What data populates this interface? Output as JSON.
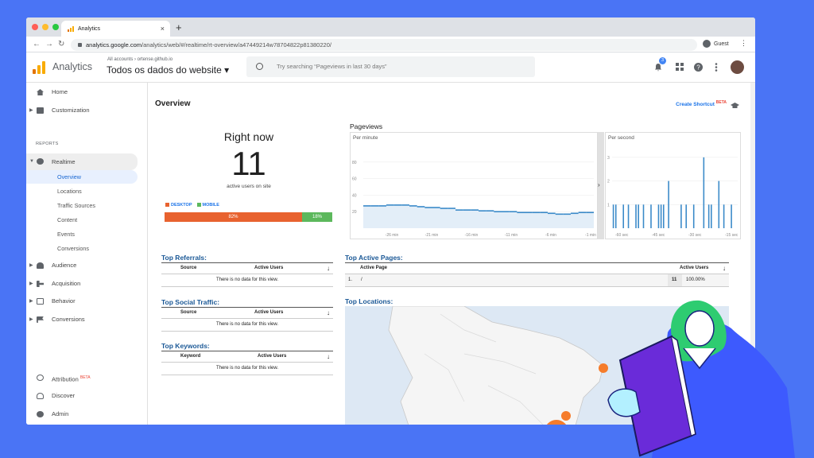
{
  "browser": {
    "tab_title": "Analytics",
    "close_glyph": "×",
    "new_tab_glyph": "+",
    "url_host": "analytics.google.com",
    "url_path": "/analytics/web/#/realtime/rt-overview/a47449214w78704822p81380220/",
    "profile_label": "Guest",
    "menu_glyph": "⋮",
    "back_glyph": "←",
    "forward_glyph": "→",
    "reload_glyph": "↻"
  },
  "header": {
    "brand": "Analytics",
    "breadcrumb": "All accounts › ortense.github.io",
    "property": "Todos os dados do website ▾",
    "search_placeholder": "Try searching “Pageviews in last 30 days”",
    "notification_count": "3",
    "icons": [
      "bell-icon",
      "apps-grid-icon",
      "help-icon",
      "more-vert-icon"
    ]
  },
  "sidebar": {
    "home": "Home",
    "customization": "Customization",
    "reports_label": "REPORTS",
    "realtime": "Realtime",
    "realtime_sub": [
      "Overview",
      "Locations",
      "Traffic Sources",
      "Content",
      "Events",
      "Conversions"
    ],
    "audience": "Audience",
    "acquisition": "Acquisition",
    "behavior": "Behavior",
    "conversions": "Conversions",
    "attribution": "Attribution",
    "beta": "BETA",
    "discover": "Discover",
    "admin": "Admin",
    "collapse_glyph": "‹"
  },
  "main": {
    "title": "Overview",
    "create_shortcut": "Create Shortcut",
    "beta": "BETA",
    "right_now": {
      "label": "Right now",
      "value": "11",
      "sublabel": "active users on site",
      "desktop_label": "DESKTOP",
      "mobile_label": "MOBILE",
      "desktop_pct": "82%",
      "mobile_pct": "18%",
      "desktop_color": "#e8622f",
      "mobile_color": "#5cb85c"
    },
    "pageviews": {
      "title": "Pageviews",
      "per_minute_label": "Per minute",
      "per_second_label": "Per second",
      "expand_glyph": "›"
    },
    "top_referrals": {
      "title": "Top Referrals:",
      "col1": "Source",
      "col2": "Active Users",
      "sort_glyph": "↓",
      "empty": "There is no data for this view."
    },
    "top_social": {
      "title": "Top Social Traffic:",
      "col1": "Source",
      "col2": "Active Users",
      "sort_glyph": "↓",
      "empty": "There is no data for this view."
    },
    "top_keywords": {
      "title": "Top Keywords:",
      "col1": "Keyword",
      "col2": "Active Users",
      "sort_glyph": "↓",
      "empty": "There is no data for this view."
    },
    "top_pages": {
      "title": "Top Active Pages:",
      "col1": "Active Page",
      "col2": "Active Users",
      "sort_glyph": "↓",
      "row_index": "1.",
      "row_page": "/",
      "row_users": "11",
      "row_pct": "100.00%"
    },
    "top_locations": {
      "title": "Top Locations:"
    }
  },
  "chart_data": [
    {
      "type": "area",
      "title": "Per minute",
      "x_ticks": [
        "-26 min",
        "-21 min",
        "-16 min",
        "-11 min",
        "-6 min",
        "-1 min"
      ],
      "y_ticks": [
        "80",
        "60",
        "40",
        "20"
      ],
      "ylim": [
        0,
        100
      ],
      "values": [
        27,
        27,
        27,
        28,
        28,
        28,
        27,
        26,
        25,
        25,
        24,
        24,
        22,
        22,
        22,
        21,
        21,
        20,
        20,
        20,
        19,
        19,
        19,
        19,
        18,
        17,
        17,
        18,
        19,
        19
      ]
    },
    {
      "type": "bar",
      "title": "Per second",
      "x_ticks": [
        "-60 sec",
        "-45 sec",
        "-30 sec",
        "-15 sec"
      ],
      "y_ticks": [
        "3",
        "2",
        "1"
      ],
      "ylim": [
        0,
        3.5
      ],
      "values": [
        1,
        1,
        0,
        0,
        1,
        0,
        1,
        0,
        0,
        1,
        1,
        0,
        1,
        0,
        0,
        1,
        0,
        0,
        1,
        1,
        1,
        0,
        2,
        0,
        0,
        0,
        0,
        1,
        0,
        1,
        0,
        0,
        1,
        0,
        0,
        0,
        3,
        0,
        1,
        1,
        0,
        0,
        2,
        0,
        1,
        0,
        0,
        1,
        0,
        0
      ]
    }
  ]
}
